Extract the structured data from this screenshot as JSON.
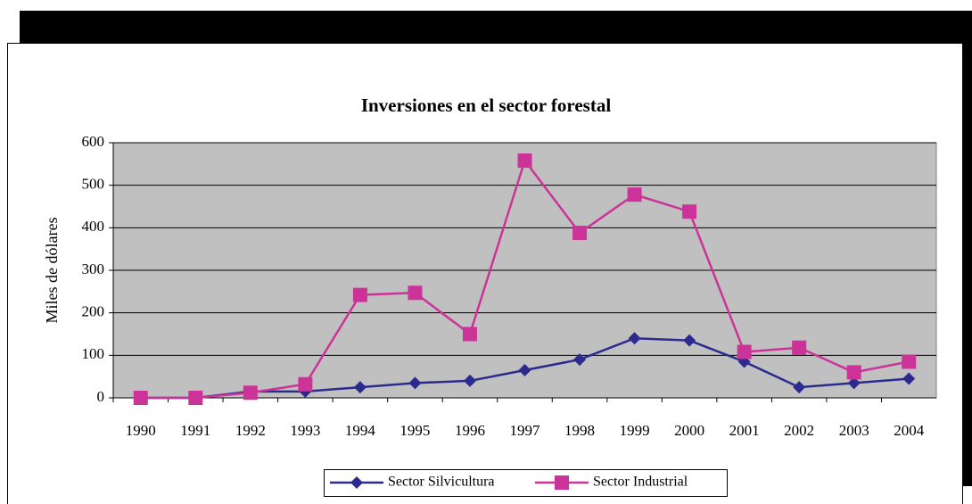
{
  "chart_data": {
    "type": "line",
    "title": "Inversiones en el sector forestal",
    "y_label": "Miles de dólares",
    "categories": [
      "1990",
      "1991",
      "1992",
      "1993",
      "1994",
      "1995",
      "1996",
      "1997",
      "1998",
      "1999",
      "2000",
      "2001",
      "2002",
      "2003",
      "2004"
    ],
    "series": [
      {
        "name": "Sector Silvicultura",
        "color": "#2b2b8f",
        "marker": "diamond",
        "values": [
          0,
          0,
          15,
          15,
          25,
          35,
          40,
          65,
          90,
          140,
          135,
          85,
          25,
          35,
          45
        ]
      },
      {
        "name": "Sector Industrial",
        "color": "#cc3399",
        "marker": "square",
        "values": [
          0,
          0,
          12,
          32,
          242,
          247,
          150,
          558,
          388,
          478,
          438,
          108,
          118,
          60,
          85
        ]
      }
    ],
    "ylim": [
      0,
      600
    ],
    "yticks": [
      0,
      100,
      200,
      300,
      400,
      500,
      600
    ],
    "grid": true,
    "legend": "bottom"
  }
}
